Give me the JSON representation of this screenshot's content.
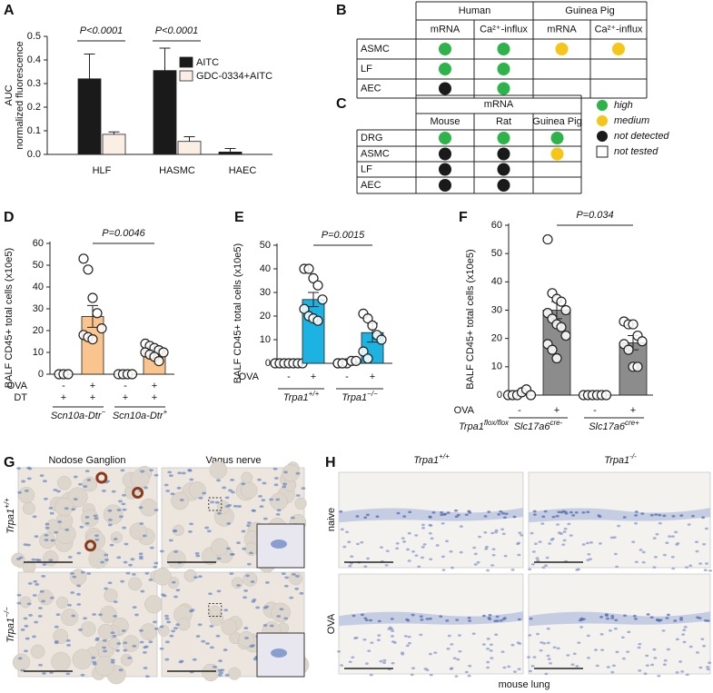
{
  "chart_data": [
    {
      "type": "bar",
      "panel": "A",
      "y_label": [
        "AUC",
        "normalized fluorescence"
      ],
      "categories": [
        "HLF",
        "HASMC",
        "HAEC"
      ],
      "series": [
        {
          "name": "AITC",
          "color": "#1a1a1a",
          "values": [
            0.32,
            0.355,
            0.01
          ],
          "errors": [
            0.105,
            0.095,
            0.015
          ]
        },
        {
          "name": "GDC-0334+AITC",
          "color": "#fbeee4",
          "values": [
            0.085,
            0.055,
            0
          ],
          "errors": [
            0.01,
            0.02,
            0
          ]
        }
      ],
      "ylim": [
        0,
        0.5
      ],
      "yticks": [
        {
          "value": 0,
          "label": "0.0"
        },
        {
          "value": 0.1,
          "label": "0.1"
        },
        {
          "value": 0.2,
          "label": "0.2"
        },
        {
          "value": 0.3,
          "label": "0.3"
        },
        {
          "value": 0.4,
          "label": "0.4"
        },
        {
          "value": 0.5,
          "label": "0.5"
        }
      ],
      "annotations": [
        "P<0.0001",
        "P<0.0001"
      ]
    },
    {
      "type": "dotplot",
      "panel": "D",
      "y_label": "BALF CD45+ total cells (x10e5)",
      "color": "#f9c48e",
      "values": [
        0,
        26.5,
        0,
        11
      ],
      "errors": [
        0,
        5,
        0,
        1.5
      ],
      "points": [
        [
          0,
          0,
          0
        ],
        [
          53,
          48,
          35,
          28,
          21,
          18,
          17,
          16
        ],
        [
          0,
          0,
          0,
          0
        ],
        [
          14,
          13,
          12,
          11,
          10,
          10,
          9,
          8,
          6
        ]
      ],
      "rows": [
        {
          "name": "OVA",
          "values": [
            "-",
            "+",
            "-",
            "+"
          ]
        },
        {
          "name": "DT",
          "values": [
            "+",
            "+",
            "+",
            "+"
          ]
        }
      ],
      "groups": [
        {
          "text": "Scn10a-Dtr",
          "sup": "−"
        },
        {
          "text": "Scn10a-Dtr",
          "sup": "+"
        }
      ],
      "ylim": [
        0,
        60
      ],
      "yticks": [
        0,
        10,
        20,
        30,
        40,
        50,
        60
      ],
      "annotation": "P=0.0046"
    },
    {
      "type": "dotplot",
      "panel": "E",
      "y_label": "BALF CD45+ total cells (x10e5)",
      "color": "#1cb3e2",
      "values": [
        0,
        27,
        0.5,
        13
      ],
      "errors": [
        0,
        3,
        0,
        4
      ],
      "points": [
        [
          0,
          0,
          0,
          0,
          0,
          0,
          0
        ],
        [
          40,
          40,
          36,
          33,
          27,
          23,
          20,
          19,
          18
        ],
        [
          0,
          0,
          0,
          1,
          1,
          0,
          0
        ],
        [
          21,
          19,
          16,
          12,
          10,
          5,
          2
        ]
      ],
      "rows": [
        {
          "name": "OVA",
          "values": [
            "-",
            "+",
            "-",
            "+"
          ]
        }
      ],
      "groups": [
        {
          "text": "Trpa1",
          "sup": "+/+"
        },
        {
          "text": "Trpa1",
          "sup": "−/−"
        }
      ],
      "ylim": [
        0,
        50
      ],
      "yticks": [
        0,
        10,
        20,
        30,
        40,
        50
      ],
      "annotation": "P=0.0015"
    },
    {
      "type": "dotplot",
      "panel": "F",
      "y_label": "BALF CD45+ total cells (x10e5)",
      "color": "#8c8c8c",
      "values": [
        0,
        30,
        0,
        18.5
      ],
      "errors": [
        0,
        3,
        0,
        2.5
      ],
      "points": [
        [
          0,
          0,
          0,
          1,
          2,
          0
        ],
        [
          55,
          36,
          34,
          33,
          30,
          29,
          27,
          25,
          24,
          21,
          18,
          16,
          13
        ],
        [
          0,
          0,
          0,
          0,
          0,
          0
        ],
        [
          26,
          25,
          25,
          21,
          19,
          18,
          16,
          10,
          10
        ]
      ],
      "rows": [
        {
          "name": "OVA",
          "values": [
            "-",
            "+",
            "-",
            "+"
          ]
        }
      ],
      "groups": [
        {
          "text": "Slc17a6",
          "sup": "cre-"
        },
        {
          "text": "Slc17a6",
          "sup": "cre+"
        }
      ],
      "group_title": {
        "text": "Trpa1",
        "sup": "flox/flox"
      },
      "ylim": [
        0,
        60
      ],
      "yticks": [
        0,
        10,
        20,
        30,
        40,
        50,
        60
      ],
      "annotation": "P=0.034"
    }
  ],
  "table_b": {
    "panel": "B",
    "header": [
      "Human",
      "Guinea Pig"
    ],
    "columns": [
      "mRNA",
      "Ca²⁺-influx",
      "mRNA",
      "Ca²⁺-influx"
    ],
    "rows": [
      {
        "label": "ASMC",
        "cells": [
          "#2db34a",
          "#2db34a",
          "#f5c518",
          "#f5c518"
        ]
      },
      {
        "label": "LF",
        "cells": [
          "#2db34a",
          "#2db34a",
          null,
          null
        ]
      },
      {
        "label": "AEC",
        "cells": [
          "#1a1a1a",
          "#2db34a",
          null,
          null
        ]
      }
    ]
  },
  "table_c": {
    "panel": "C",
    "header": [
      "mRNA"
    ],
    "columns": [
      "Mouse",
      "Rat",
      "Guinea Pig"
    ],
    "rows": [
      {
        "label": "DRG",
        "cells": [
          "#2db34a",
          "#2db34a",
          "#2db34a"
        ]
      },
      {
        "label": "ASMC",
        "cells": [
          "#1a1a1a",
          "#1a1a1a",
          "#f5c518"
        ]
      },
      {
        "label": "LF",
        "cells": [
          "#1a1a1a",
          "#1a1a1a",
          null
        ]
      },
      {
        "label": "AEC",
        "cells": [
          "#1a1a1a",
          "#1a1a1a",
          null
        ]
      }
    ],
    "legend": [
      {
        "label": "high",
        "color": "#2db34a"
      },
      {
        "label": "medium",
        "color": "#f5c518"
      },
      {
        "label": "not detected",
        "color": "#1a1a1a"
      },
      {
        "label": "not tested",
        "color": null
      }
    ]
  },
  "panel_g": {
    "panel": "G",
    "columns": [
      "Nodose Ganglion",
      "Vagus nerve"
    ],
    "rows": [
      {
        "text": "Trpa1",
        "sup": "+/+"
      },
      {
        "text": "Trpa1",
        "sup": "−/−"
      }
    ]
  },
  "panel_h": {
    "panel": "H",
    "columns": [
      {
        "text": "Trpa1",
        "sup": "+/+"
      },
      {
        "text": "Trpa1",
        "sup": "-/-"
      }
    ],
    "rows": [
      "naive",
      "OVA"
    ],
    "caption": "mouse lung"
  }
}
